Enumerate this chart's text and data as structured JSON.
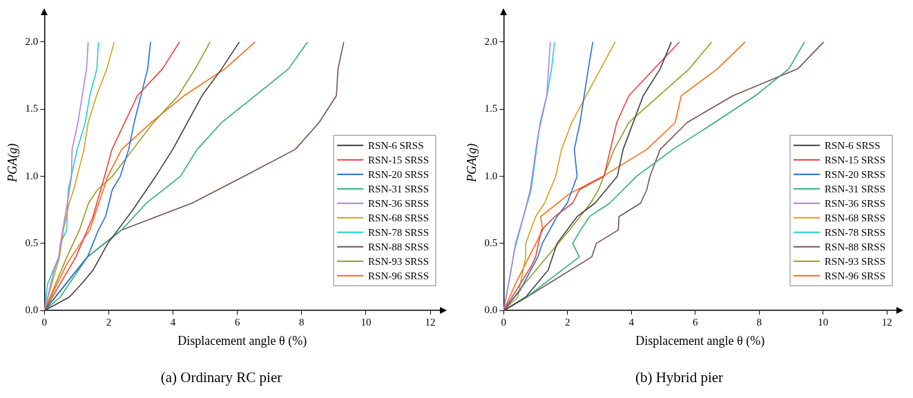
{
  "chart_data": [
    {
      "type": "line",
      "title": "(a) Ordinary RC pier",
      "xlabel": "Displacement angle θ (%)",
      "ylabel": "PGA(g)",
      "xlim": [
        0,
        12.3
      ],
      "ylim": [
        0,
        2.2
      ],
      "xticks": [
        0,
        2,
        4,
        6,
        8,
        10,
        12
      ],
      "yticks": [
        {
          "value": 0,
          "label": "0.0"
        },
        {
          "value": 0.5,
          "label": "0.5"
        },
        {
          "value": 1,
          "label": "1.0"
        },
        {
          "value": 1.5,
          "label": "1.5"
        },
        {
          "value": 2,
          "label": "2.0"
        }
      ],
      "legend": "bottom right",
      "series": [
        {
          "name": "RSN-6 SRSS",
          "color": "#404040",
          "x": [
            0,
            0.77,
            1.16,
            1.51,
            1.97,
            2.75,
            3.46,
            3.99,
            4.9,
            5.51,
            6.06
          ],
          "values": [
            0,
            0.1,
            0.2,
            0.3,
            0.5,
            0.75,
            1.0,
            1.2,
            1.6,
            1.8,
            2.0
          ]
        },
        {
          "name": "RSN-15 SRSS",
          "color": "#f03c3c",
          "x": [
            0,
            0.98,
            1.51,
            1.87,
            2.1,
            2.89,
            3.67,
            4.2
          ],
          "values": [
            0,
            0.4,
            0.7,
            1.0,
            1.2,
            1.6,
            1.8,
            2.0
          ]
        },
        {
          "name": "RSN-20 SRSS",
          "color": "#1f6fe0",
          "x": [
            0,
            0.84,
            1.34,
            1.68,
            1.9,
            2.11,
            2.36,
            2.62,
            2.79,
            3.21,
            3.3
          ],
          "values": [
            0,
            0.25,
            0.4,
            0.6,
            0.7,
            0.9,
            1.0,
            1.2,
            1.4,
            1.8,
            2.0
          ]
        },
        {
          "name": "RSN-31 SRSS",
          "color": "#2fae6f",
          "x": [
            0,
            0.49,
            1.34,
            2.4,
            3.17,
            4.23,
            4.75,
            5.51,
            6.55,
            7.59,
            8.18
          ],
          "values": [
            0,
            0.1,
            0.4,
            0.6,
            0.8,
            1.0,
            1.2,
            1.4,
            1.6,
            1.8,
            2.0
          ]
        },
        {
          "name": "RSN-36 SRSS",
          "color": "#b080e0",
          "x": [
            0,
            0.3,
            0.45,
            0.5,
            0.78,
            0.84,
            0.86,
            1.04,
            1.31,
            1.36
          ],
          "values": [
            0,
            0.3,
            0.4,
            0.5,
            0.9,
            1.0,
            1.2,
            1.4,
            1.8,
            2.0
          ]
        },
        {
          "name": "RSN-68 SRSS",
          "color": "#d4a017",
          "x": [
            0,
            0.17,
            0.47,
            0.59,
            0.77,
            0.91,
            1.23,
            1.36,
            1.62,
            1.94,
            2.17
          ],
          "values": [
            0,
            0.15,
            0.4,
            0.6,
            0.8,
            0.9,
            1.2,
            1.4,
            1.6,
            1.8,
            2.0
          ]
        },
        {
          "name": "RSN-78 SRSS",
          "color": "#1fcfcf",
          "x": [
            0,
            0.1,
            0.45,
            0.5,
            0.69,
            0.74,
            1.02,
            1.27,
            1.41,
            1.63,
            1.68
          ],
          "values": [
            0,
            0.2,
            0.4,
            0.5,
            0.6,
            0.9,
            1.2,
            1.4,
            1.6,
            1.8,
            2.0
          ]
        },
        {
          "name": "RSN-88 SRSS",
          "color": "#7a4f4f",
          "x": [
            0,
            1.34,
            2.4,
            4.59,
            6.21,
            7.8,
            8.54,
            9.08,
            9.13,
            9.31
          ],
          "values": [
            0,
            0.4,
            0.6,
            0.8,
            1.0,
            1.2,
            1.4,
            1.6,
            1.8,
            2.0
          ]
        },
        {
          "name": "RSN-93 SRSS",
          "color": "#999922",
          "x": [
            0,
            0.7,
            1.09,
            1.37,
            1.65,
            2.11,
            2.75,
            3.39,
            4.16,
            4.69,
            5.15
          ],
          "values": [
            0,
            0.4,
            0.6,
            0.8,
            0.9,
            1.0,
            1.2,
            1.4,
            1.6,
            1.8,
            2.0
          ]
        },
        {
          "name": "RSN-96 SRSS",
          "color": "#ff6a10",
          "x": [
            0,
            0.7,
            1.12,
            1.41,
            1.97,
            2.4,
            3.32,
            4.34,
            5.61,
            6.55
          ],
          "values": [
            0,
            0.35,
            0.5,
            0.6,
            1.0,
            1.2,
            1.4,
            1.6,
            1.8,
            2.0
          ]
        }
      ]
    },
    {
      "type": "line",
      "title": "(b) Hybrid pier",
      "xlabel": "Displacement angle θ (%)",
      "ylabel": "PGA(g)",
      "xlim": [
        0,
        12.3
      ],
      "ylim": [
        0,
        2.2
      ],
      "xticks": [
        0,
        2,
        4,
        6,
        8,
        10,
        12
      ],
      "yticks": [
        {
          "value": 0,
          "label": "0.0"
        },
        {
          "value": 0.5,
          "label": "0.5"
        },
        {
          "value": 1,
          "label": "1.0"
        },
        {
          "value": 1.5,
          "label": "1.5"
        },
        {
          "value": 2,
          "label": "2.0"
        }
      ],
      "legend": "bottom right",
      "series": [
        {
          "name": "RSN-6 SRSS",
          "color": "#404040",
          "x": [
            0,
            0.69,
            1.39,
            1.67,
            2.3,
            2.86,
            3.56,
            3.74,
            4.37,
            4.9,
            5.25
          ],
          "values": [
            0,
            0.1,
            0.3,
            0.5,
            0.7,
            0.8,
            1.0,
            1.2,
            1.6,
            1.8,
            2.0
          ]
        },
        {
          "name": "RSN-15 SRSS",
          "color": "#f03c3c",
          "x": [
            0,
            0.86,
            1.0,
            1.18,
            1.6,
            2.16,
            2.37,
            3.14,
            3.54,
            3.92,
            5.5
          ],
          "values": [
            0,
            0.33,
            0.4,
            0.6,
            0.7,
            0.8,
            0.9,
            1.0,
            1.4,
            1.6,
            2.0
          ]
        },
        {
          "name": "RSN-20 SRSS",
          "color": "#1f6fe0",
          "x": [
            0,
            0.51,
            1.07,
            1.21,
            1.67,
            1.99,
            2.3,
            2.21,
            2.39,
            2.65,
            2.79
          ],
          "values": [
            0,
            0.15,
            0.4,
            0.5,
            0.7,
            0.8,
            1.0,
            1.2,
            1.4,
            1.8,
            2.0
          ]
        },
        {
          "name": "RSN-31 SRSS",
          "color": "#2fae6f",
          "x": [
            0,
            0.72,
            2.37,
            2.16,
            2.41,
            2.69,
            3.32,
            4.16,
            5.3,
            6.6,
            7.88,
            8.93,
            9.42
          ],
          "values": [
            0,
            0.1,
            0.4,
            0.5,
            0.6,
            0.7,
            0.8,
            1.0,
            1.2,
            1.4,
            1.6,
            1.8,
            2.0
          ]
        },
        {
          "name": "RSN-36 SRSS",
          "color": "#b080e0",
          "x": [
            0,
            0.23,
            0.37,
            0.62,
            0.83,
            1.07,
            1.35,
            1.46
          ],
          "values": [
            0,
            0.3,
            0.5,
            0.7,
            0.9,
            1.3,
            1.6,
            2.0
          ]
        },
        {
          "name": "RSN-68 SRSS",
          "color": "#d4a017",
          "x": [
            0,
            0.44,
            0.69,
            0.69,
            1.0,
            1.28,
            1.63,
            1.81,
            2.13,
            3.49
          ],
          "values": [
            0,
            0.1,
            0.4,
            0.5,
            0.7,
            0.8,
            1.0,
            1.2,
            1.4,
            2.0
          ]
        },
        {
          "name": "RSN-78 SRSS",
          "color": "#1fcfcf",
          "x": [
            0,
            0.34,
            0.62,
            0.86,
            1.14,
            1.35,
            1.5,
            1.59
          ],
          "values": [
            0,
            0.45,
            0.7,
            0.9,
            1.4,
            1.6,
            1.8,
            2.0
          ]
        },
        {
          "name": "RSN-88 SRSS",
          "color": "#7a4f4f",
          "x": [
            0,
            0.72,
            2.76,
            2.9,
            3.59,
            3.61,
            4.29,
            4.48,
            4.58,
            4.9,
            5.74,
            7.18,
            9.21,
            10.02
          ],
          "values": [
            0,
            0.1,
            0.4,
            0.5,
            0.6,
            0.7,
            0.8,
            0.9,
            1.0,
            1.2,
            1.4,
            1.6,
            1.8,
            2.0
          ]
        },
        {
          "name": "RSN-93 SRSS",
          "color": "#999922",
          "x": [
            0,
            0.65,
            2.06,
            2.72,
            2.97,
            3.46,
            3.92,
            5.81,
            6.51
          ],
          "values": [
            0,
            0.2,
            0.6,
            0.8,
            0.9,
            1.2,
            1.4,
            1.8,
            2.0
          ]
        },
        {
          "name": "RSN-96 SRSS",
          "color": "#ff6a10",
          "x": [
            0,
            0.37,
            1.22,
            1.16,
            2.06,
            3.11,
            4.48,
            5.37,
            5.56,
            6.69,
            7.56
          ],
          "values": [
            0,
            0.2,
            0.6,
            0.7,
            0.87,
            1.0,
            1.2,
            1.4,
            1.6,
            1.8,
            2.0
          ]
        }
      ]
    }
  ]
}
